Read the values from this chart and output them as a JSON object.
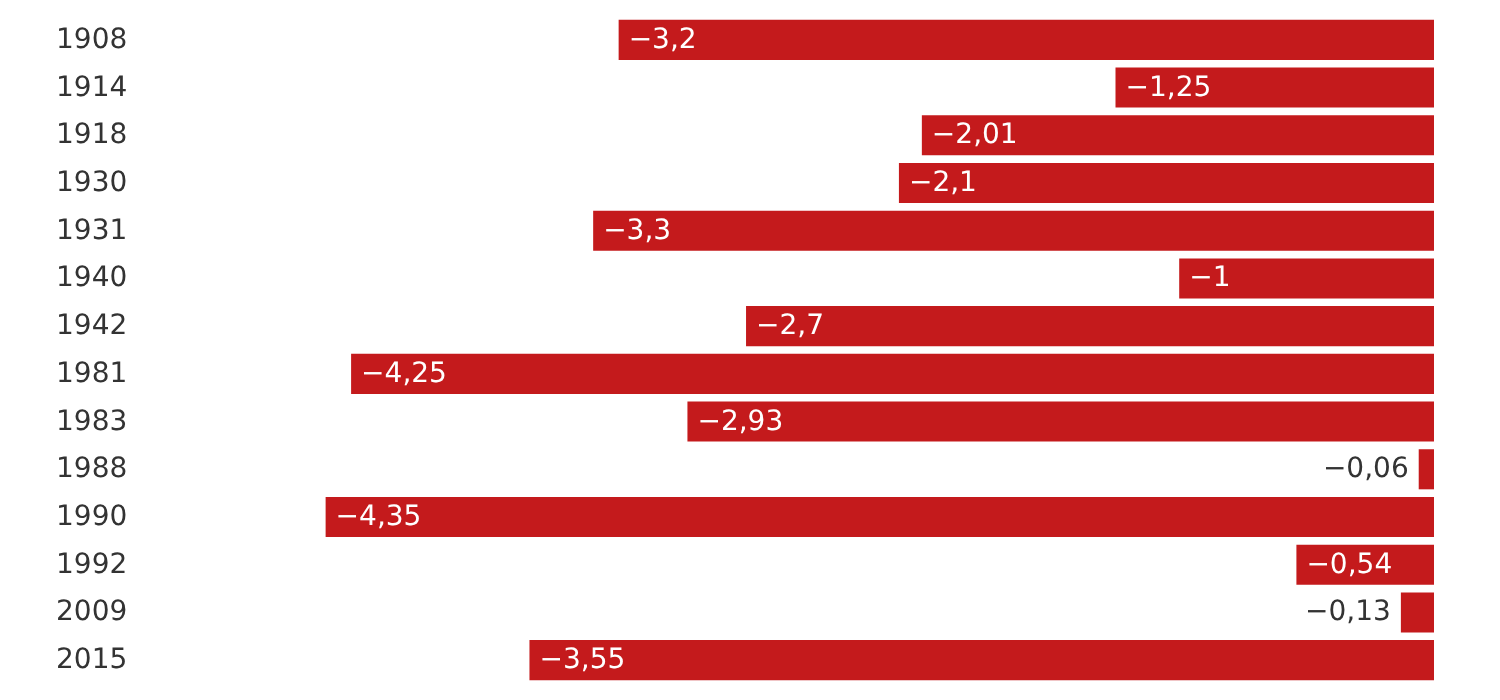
{
  "chart_data": {
    "type": "bar",
    "orientation": "horizontal",
    "categories": [
      "1908",
      "1914",
      "1918",
      "1930",
      "1931",
      "1940",
      "1942",
      "1981",
      "1983",
      "1988",
      "1990",
      "1992",
      "2009",
      "2015"
    ],
    "values": [
      -3.2,
      -1.25,
      -2.01,
      -2.1,
      -3.3,
      -1,
      -2.7,
      -4.25,
      -2.93,
      -0.06,
      -4.35,
      -0.54,
      -0.13,
      -3.55
    ],
    "value_labels": [
      "−3,2",
      "−1,25",
      "−2,01",
      "−2,1",
      "−3,3",
      "−1",
      "−2,7",
      "−4,25",
      "−2,93",
      "−0,06",
      "−4,35",
      "−0,54",
      "−0,13",
      "−3,55"
    ],
    "color": "#c41a1c"
  }
}
